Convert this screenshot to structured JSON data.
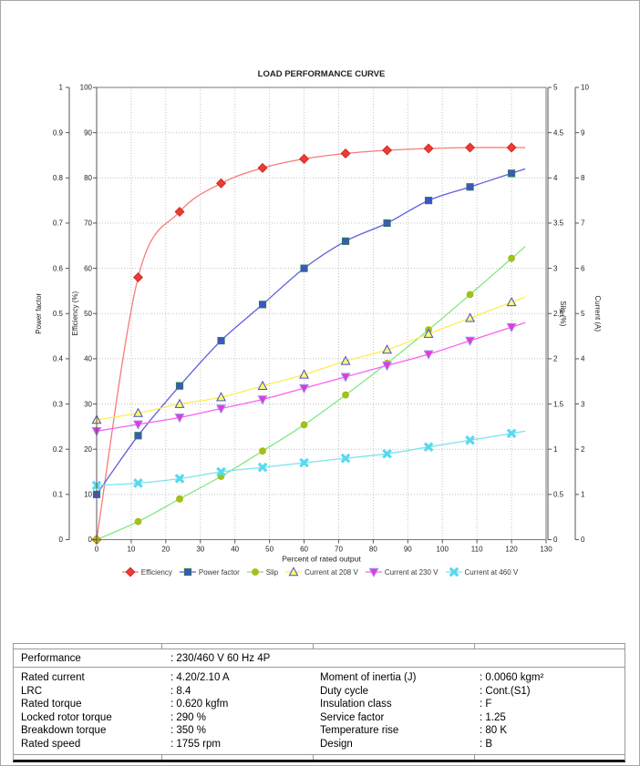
{
  "chart_data": {
    "type": "line",
    "title": "LOAD PERFORMANCE CURVE",
    "xlabel": "Percent of rated output",
    "x_range": [
      0,
      130
    ],
    "x_tick_step": 10,
    "grid": true,
    "legend_position": "bottom",
    "grid_color": "#c2c2c2",
    "frame_color": "#787878",
    "axes": [
      {
        "id": "power_factor",
        "label": "Power factor",
        "range": [
          0,
          1
        ],
        "tick_step": 0.1,
        "side": "left"
      },
      {
        "id": "efficiency",
        "label": "Efficiency (%)",
        "range": [
          0,
          100
        ],
        "tick_step": 10,
        "side": "left"
      },
      {
        "id": "slip",
        "label": "Slip (%)",
        "range": [
          0,
          5
        ],
        "tick_step": 0.5,
        "side": "right"
      },
      {
        "id": "current",
        "label": "Current (A)",
        "range": [
          0,
          10
        ],
        "tick_step": 1,
        "side": "right"
      }
    ],
    "x": [
      0,
      12,
      24,
      36,
      48,
      60,
      72,
      84,
      96,
      108,
      120
    ],
    "series": [
      {
        "name": "Efficiency",
        "axis": "efficiency",
        "marker": "diamond",
        "line_color": "#f87b74",
        "marker_fill": "#ee3b34",
        "marker_stroke": "#cc2a24",
        "values": [
          0,
          58,
          72.5,
          78.8,
          82.2,
          84.2,
          85.4,
          86.1,
          86.5,
          86.7,
          86.7
        ]
      },
      {
        "name": "Power factor",
        "axis": "power_factor",
        "marker": "square",
        "line_color": "#5d60dd",
        "marker_fill": "#3c55c8",
        "marker_stroke": "#2e7d4f",
        "values": [
          0.1,
          0.23,
          0.34,
          0.44,
          0.52,
          0.6,
          0.66,
          0.7,
          0.75,
          0.78,
          0.81
        ]
      },
      {
        "name": "Slip",
        "axis": "slip",
        "marker": "circle",
        "line_color": "#7fe87f",
        "marker_fill": "#85cf24",
        "marker_stroke": "#cfa50a",
        "values": [
          0,
          0.2,
          0.45,
          0.7,
          0.98,
          1.27,
          1.6,
          1.95,
          2.32,
          2.71,
          3.11
        ]
      },
      {
        "name": "Current at 208 V",
        "axis": "current",
        "marker": "triangle-up",
        "line_color": "#ffec52",
        "marker_fill": "#fbff66",
        "marker_stroke": "#4a4ad0",
        "values": [
          2.65,
          2.8,
          3.0,
          3.15,
          3.4,
          3.65,
          3.95,
          4.2,
          4.55,
          4.9,
          5.25
        ]
      },
      {
        "name": "Current at 230 V",
        "axis": "current",
        "marker": "triangle-down",
        "line_color": "#f960f4",
        "marker_fill": "#e934e2",
        "marker_stroke": "#968ce0",
        "values": [
          2.4,
          2.55,
          2.7,
          2.9,
          3.1,
          3.35,
          3.6,
          3.85,
          4.1,
          4.4,
          4.7
        ]
      },
      {
        "name": "Current at 460 V",
        "axis": "current",
        "marker": "x",
        "line_color": "#79e5f0",
        "marker_fill": "#58d9ee",
        "marker_stroke": "#58d9ee",
        "values": [
          1.2,
          1.25,
          1.35,
          1.5,
          1.6,
          1.7,
          1.8,
          1.9,
          2.05,
          2.2,
          2.35
        ]
      }
    ]
  },
  "spec_table": {
    "header": {
      "label": "Performance",
      "value": ": 230/460 V 60 Hz 4P"
    },
    "left_rows": [
      {
        "label": "Rated current",
        "value": ": 4.20/2.10 A"
      },
      {
        "label": "LRC",
        "value": ": 8.4"
      },
      {
        "label": "Rated torque",
        "value": ": 0.620 kgfm"
      },
      {
        "label": "Locked rotor torque",
        "value": ": 290 %"
      },
      {
        "label": "Breakdown torque",
        "value": ": 350 %"
      },
      {
        "label": "Rated speed",
        "value": ": 1755 rpm"
      }
    ],
    "right_rows": [
      {
        "label": "Moment of inertia (J)",
        "value": ": 0.0060 kgm²"
      },
      {
        "label": "Duty cycle",
        "value": ": Cont.(S1)"
      },
      {
        "label": "Insulation class",
        "value": ": F"
      },
      {
        "label": "Service factor",
        "value": ": 1.25"
      },
      {
        "label": "Temperature rise",
        "value": ": 80 K"
      },
      {
        "label": "Design",
        "value": ": B"
      }
    ]
  }
}
